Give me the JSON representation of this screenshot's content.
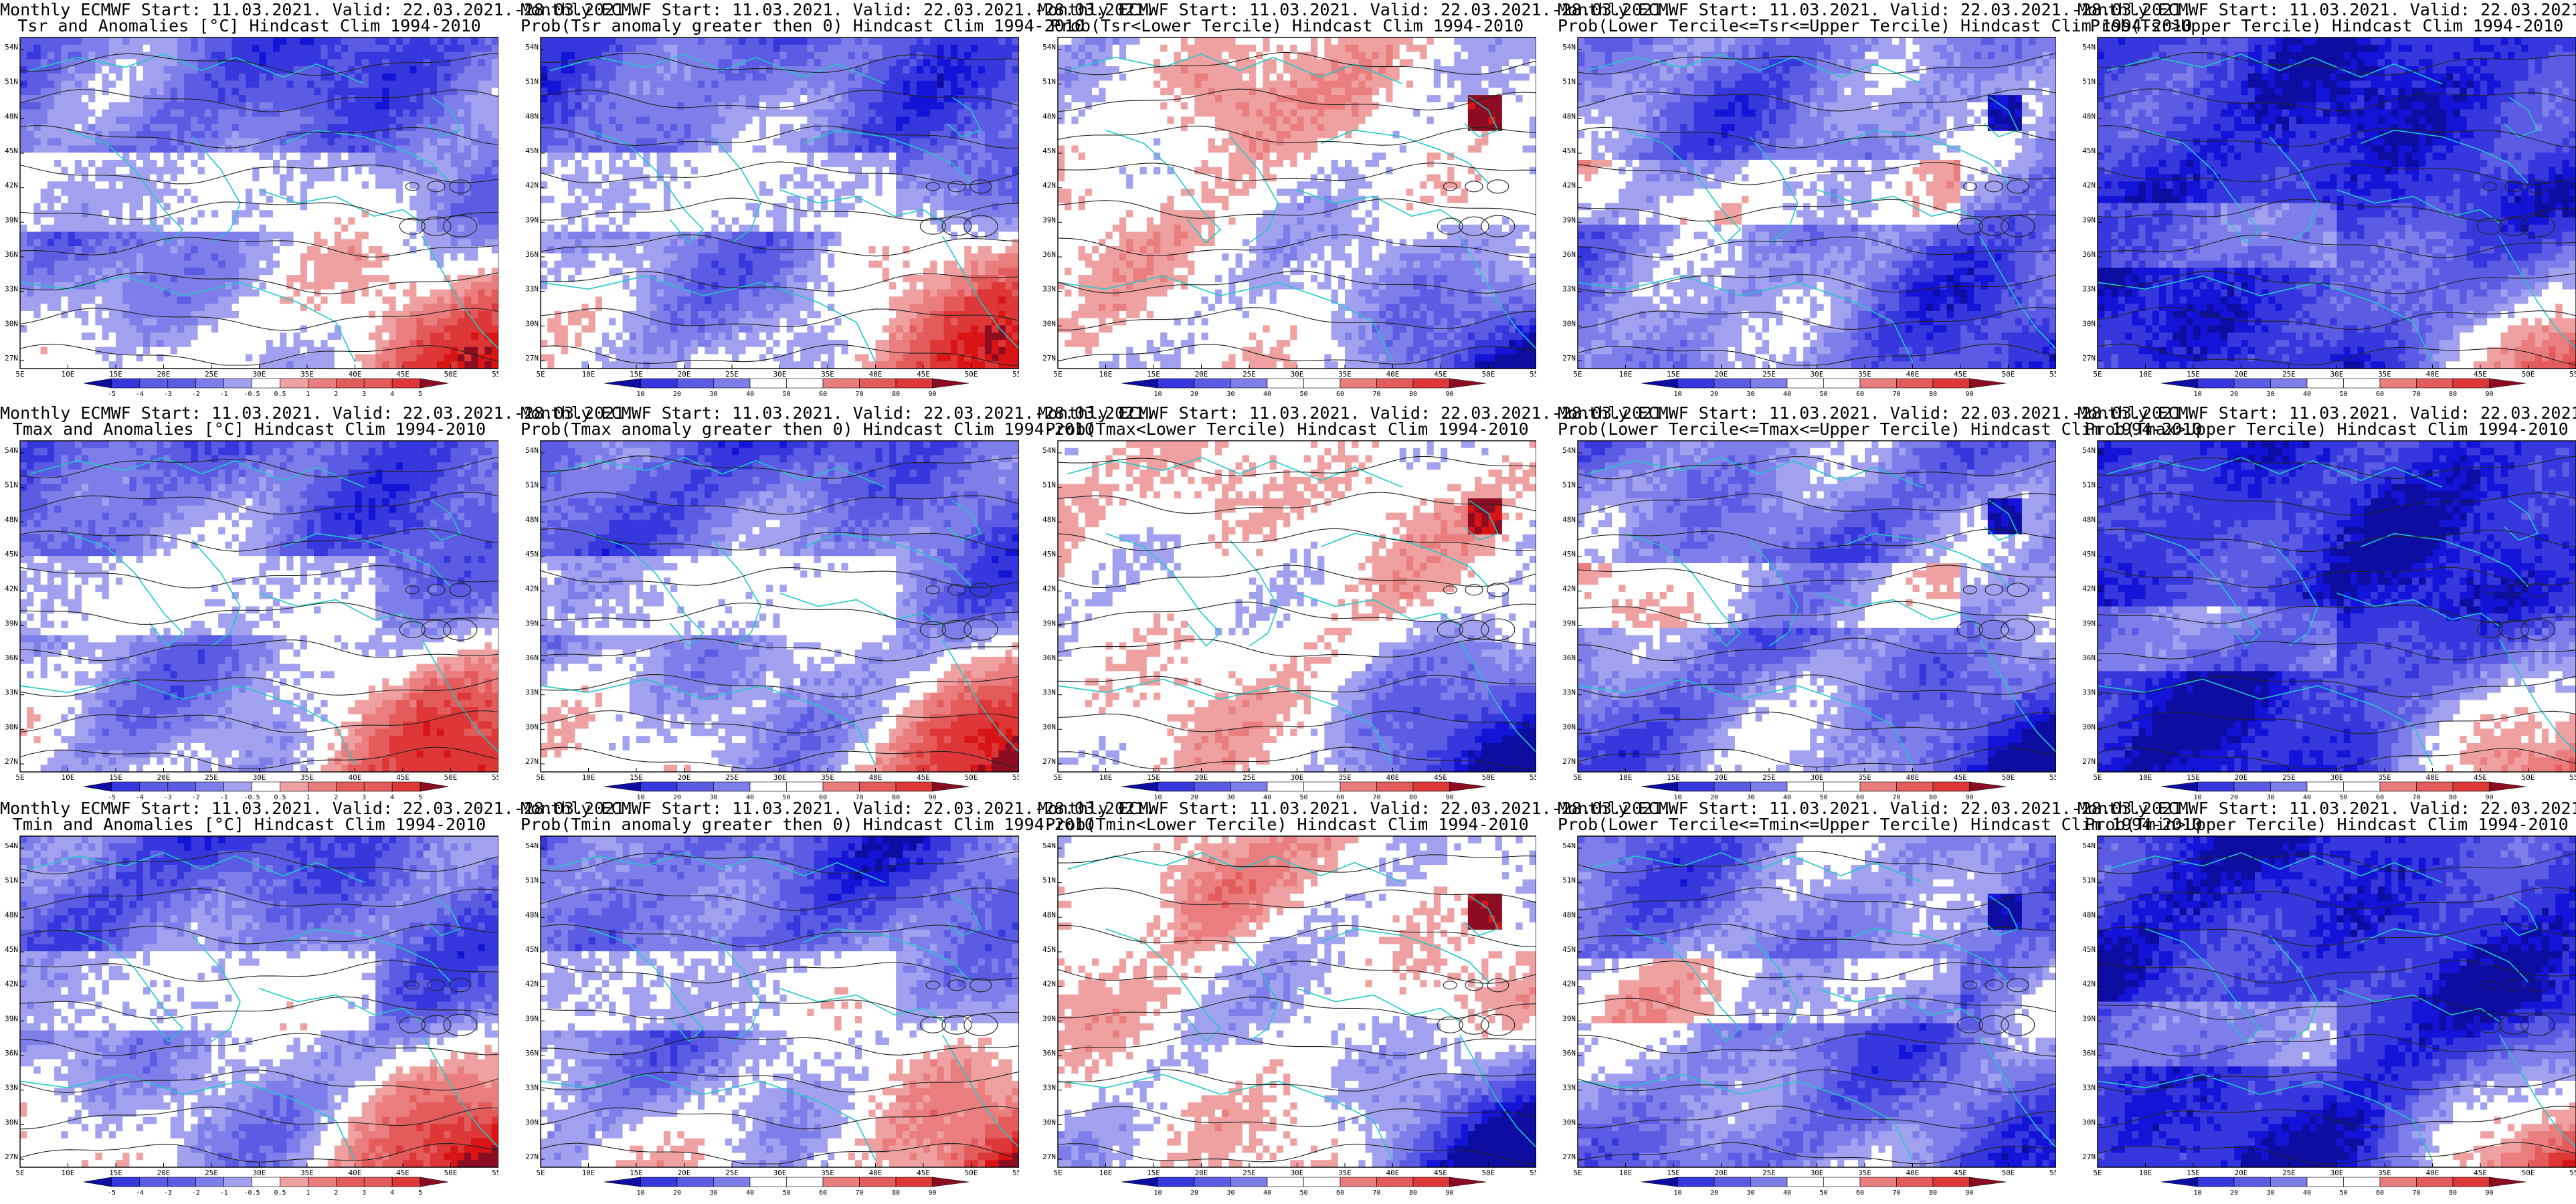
{
  "title_line1": "Monthly ECMWF Start: 11.03.2021. Valid: 22.03.2021.-28.03.2021.",
  "colors": {
    "cold": "#1414d8",
    "warm": "#d81414",
    "neutral": "#ffffff",
    "contours": "#222222",
    "coastlines": "#20c8c8"
  },
  "x_ticks": [
    "5E",
    "10E",
    "15E",
    "20E",
    "25E",
    "30E",
    "35E",
    "40E",
    "45E",
    "50E",
    "55E"
  ],
  "y_ticks": [
    "27N",
    "30N",
    "33N",
    "36N",
    "39N",
    "42N",
    "45N",
    "48N",
    "51N",
    "54N"
  ],
  "anomaly_scale": [
    "-5",
    "-4",
    "-3",
    "-2",
    "-1",
    "-0.5",
    "0.5",
    "1",
    "2",
    "3",
    "4",
    "5"
  ],
  "probability_scale": [
    "10",
    "20",
    "30",
    "40",
    "50",
    "60",
    "70",
    "80",
    "90"
  ],
  "rows": [
    {
      "variable": "Tsr",
      "panels": [
        {
          "line2": "Tsr and Anomalies [°C] Hindcast Clim 1994-2010",
          "scale": "anomaly",
          "pattern": "anomaly",
          "seed": 11
        },
        {
          "line2": "Prob(Tsr anomaly greater then 0) Hindcast Clim 1994-2010",
          "scale": "probability",
          "pattern": "anomaly",
          "seed": 12
        },
        {
          "line2": "Prob(Tsr<Lower Tercile) Hindcast Clim 1994-2010",
          "scale": "probability",
          "pattern": "lower",
          "seed": 13
        },
        {
          "line2": "Prob(Lower Tercile<=Tsr<=Upper Tercile) Hindcast Clim 1994-2010",
          "scale": "probability",
          "pattern": "middle",
          "seed": 14
        },
        {
          "line2": "Prob(Tsr>Upper Tercile) Hindcast Clim 1994-2010",
          "scale": "probability",
          "pattern": "upper",
          "seed": 15
        }
      ]
    },
    {
      "variable": "Tmax",
      "panels": [
        {
          "line2": "Tmax and Anomalies [°C] Hindcast Clim 1994-2010",
          "scale": "anomaly",
          "pattern": "anomaly",
          "seed": 21
        },
        {
          "line2": "Prob(Tmax anomaly greater then 0) Hindcast Clim 1994-2010",
          "scale": "probability",
          "pattern": "anomaly",
          "seed": 22
        },
        {
          "line2": "Prob(Tmax<Lower Tercile) Hindcast Clim 1994-2010",
          "scale": "probability",
          "pattern": "lower",
          "seed": 23
        },
        {
          "line2": "Prob(Lower Tercile<=Tmax<=Upper Tercile) Hindcast Clim 1994-2010",
          "scale": "probability",
          "pattern": "middle",
          "seed": 24
        },
        {
          "line2": "Prob(Tmax>Upper Tercile) Hindcast Clim 1994-2010",
          "scale": "probability",
          "pattern": "upper",
          "seed": 25
        }
      ]
    },
    {
      "variable": "Tmin",
      "panels": [
        {
          "line2": "Tmin and Anomalies [°C] Hindcast Clim 1994-2010",
          "scale": "anomaly",
          "pattern": "anomaly",
          "seed": 31
        },
        {
          "line2": "Prob(Tmin anomaly greater then 0) Hindcast Clim 1994-2010",
          "scale": "probability",
          "pattern": "anomaly",
          "seed": 32
        },
        {
          "line2": "Prob(Tmin<Lower Tercile) Hindcast Clim 1994-2010",
          "scale": "probability",
          "pattern": "lower",
          "seed": 33
        },
        {
          "line2": "Prob(Lower Tercile<=Tmin<=Upper Tercile) Hindcast Clim 1994-2010",
          "scale": "probability",
          "pattern": "middle",
          "seed": 34
        },
        {
          "line2": "Prob(Tmin>Upper Tercile) Hindcast Clim 1994-2010",
          "scale": "probability",
          "pattern": "upper",
          "seed": 35
        }
      ]
    }
  ]
}
